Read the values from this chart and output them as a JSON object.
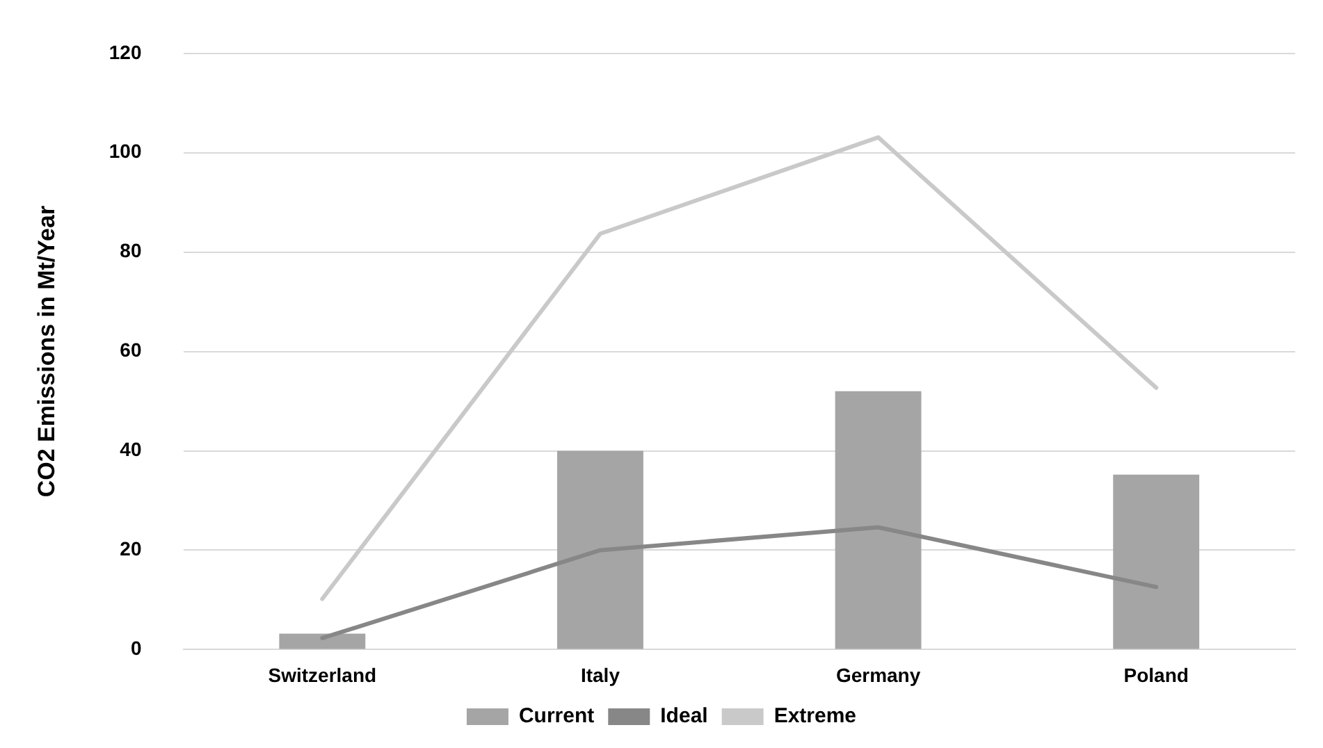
{
  "chart_data": {
    "type": "bar",
    "ylabel": "CO2 Emissions in Mt/Year",
    "categories": [
      "Switzerland",
      "Italy",
      "Germany",
      "Poland"
    ],
    "series": [
      {
        "name": "Current",
        "color": "#a5a5a5",
        "values": [
          3.2,
          40,
          52,
          35.2
        ]
      },
      {
        "name": "Ideal",
        "type": "line",
        "color": "#878787",
        "values": [
          2.3,
          20,
          24.6,
          12.6
        ]
      },
      {
        "name": "Extreme",
        "type": "line",
        "color": "#c9c9c9",
        "values": [
          10.2,
          83.7,
          103.1,
          52.7
        ]
      }
    ],
    "ylim": [
      0,
      120
    ],
    "yticks": [
      0,
      20,
      40,
      60,
      80,
      100,
      120
    ],
    "grid": "y",
    "legend": "bottom",
    "marker": "none"
  }
}
